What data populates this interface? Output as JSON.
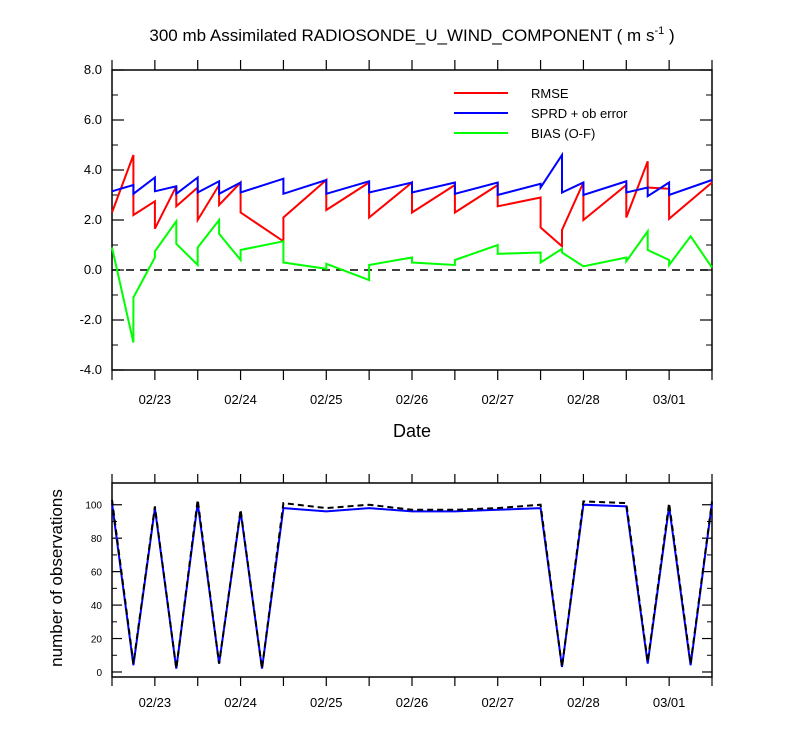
{
  "colors": {
    "rmse": "#ff0000",
    "sprd": "#0000ff",
    "bias": "#00ff00",
    "axis": "#000000",
    "zero_line": "#000000",
    "obs_assim": "#0000ff",
    "obs_total": "#000000"
  },
  "chart_data": [
    {
      "type": "line",
      "title": "300 mb Assimilated RADIOSONDE_U_WIND_COMPONENT ( m s",
      "title_superscript": "-1",
      "title_suffix": " )",
      "xlabel": "Date",
      "ylabel": "",
      "x_tick_labels": [
        "02/23",
        "02/24",
        "02/25",
        "02/26",
        "02/27",
        "02/28",
        "03/01"
      ],
      "y_tick_labels": [
        "8.0",
        "6.0",
        "4.0",
        "2.0",
        "0.0",
        "-2.0",
        "-4.0"
      ],
      "ylim": [
        -4,
        8
      ],
      "y_ticks": [
        8,
        6,
        4,
        2,
        0,
        -2,
        -4
      ],
      "x_unit": "days since 02/22 00Z (fractional)",
      "xlim": [
        0.5,
        7.5
      ],
      "x_ticks": [
        1,
        2,
        3,
        4,
        5,
        6,
        7
      ],
      "zero_reference_line": "dashed",
      "legend_position": "top-right",
      "series": [
        {
          "name": "RMSE",
          "color_key": "rmse",
          "x": [
            0.5,
            0.75,
            0.75,
            1.0,
            1.0,
            1.25,
            1.25,
            1.5,
            1.5,
            1.75,
            1.75,
            2.0,
            2.0,
            2.5,
            2.5,
            3.0,
            3.0,
            3.5,
            3.5,
            4.0,
            4.0,
            4.5,
            4.5,
            5.0,
            5.0,
            5.5,
            5.5,
            5.75,
            5.75,
            6.0,
            6.0,
            6.5,
            6.5,
            6.75,
            6.75,
            7.0,
            7.0,
            7.5
          ],
          "y": [
            2.3,
            4.6,
            2.2,
            2.75,
            1.65,
            3.35,
            2.55,
            3.3,
            2.0,
            3.4,
            2.6,
            3.5,
            2.3,
            1.15,
            2.1,
            3.6,
            2.4,
            3.5,
            2.1,
            3.5,
            2.3,
            3.4,
            2.3,
            3.4,
            2.55,
            2.9,
            1.7,
            0.95,
            1.6,
            3.5,
            2.0,
            3.4,
            2.1,
            4.35,
            3.3,
            3.25,
            2.05,
            3.5
          ]
        },
        {
          "name": "SPRD + ob error",
          "color_key": "sprd",
          "x": [
            0.5,
            0.75,
            0.75,
            1.0,
            1.0,
            1.25,
            1.25,
            1.5,
            1.5,
            1.75,
            1.75,
            2.0,
            2.0,
            2.5,
            2.5,
            3.0,
            3.0,
            3.5,
            3.5,
            4.0,
            4.0,
            4.5,
            4.5,
            5.0,
            5.0,
            5.5,
            5.5,
            5.75,
            5.75,
            6.0,
            6.0,
            6.5,
            6.5,
            6.75,
            6.75,
            7.0,
            7.0,
            7.5
          ],
          "y": [
            3.15,
            3.4,
            3.05,
            3.7,
            3.15,
            3.35,
            3.05,
            3.7,
            3.1,
            3.55,
            3.05,
            3.5,
            3.1,
            3.65,
            3.05,
            3.6,
            3.05,
            3.55,
            3.1,
            3.5,
            3.1,
            3.5,
            3.05,
            3.5,
            3.0,
            3.45,
            3.3,
            4.6,
            3.1,
            3.5,
            3.0,
            3.55,
            3.1,
            3.3,
            2.95,
            3.5,
            3.0,
            3.6
          ]
        },
        {
          "name": "BIAS (O-F)",
          "color_key": "bias",
          "x": [
            0.5,
            0.75,
            0.75,
            1.0,
            1.0,
            1.25,
            1.25,
            1.5,
            1.5,
            1.75,
            1.75,
            2.0,
            2.0,
            2.5,
            2.5,
            3.0,
            3.0,
            3.5,
            3.5,
            4.0,
            4.0,
            4.5,
            4.5,
            5.0,
            5.0,
            5.5,
            5.5,
            5.75,
            5.75,
            6.0,
            6.0,
            6.5,
            6.5,
            6.75,
            6.75,
            7.0,
            7.0,
            7.25,
            7.5
          ],
          "y": [
            0.9,
            -2.9,
            -1.1,
            0.5,
            0.75,
            1.95,
            1.05,
            0.2,
            0.9,
            2.0,
            1.45,
            0.4,
            0.8,
            1.15,
            0.3,
            0.05,
            0.25,
            -0.4,
            0.2,
            0.5,
            0.3,
            0.2,
            0.4,
            1.0,
            0.65,
            0.7,
            0.3,
            0.85,
            0.7,
            0.15,
            0.15,
            0.5,
            0.35,
            1.55,
            0.8,
            0.4,
            0.2,
            1.35,
            0.1
          ]
        }
      ]
    },
    {
      "type": "line",
      "title": "",
      "xlabel": "",
      "ylabel": "number of observations",
      "x_tick_labels": [
        "02/23",
        "02/24",
        "02/25",
        "02/26",
        "02/27",
        "02/28",
        "03/01"
      ],
      "y_tick_labels": [
        "100",
        "80",
        "60",
        "40",
        "20",
        "0"
      ],
      "ylim": [
        -3,
        113
      ],
      "y_ticks": [
        100,
        80,
        60,
        40,
        20,
        0
      ],
      "xlim": [
        0.5,
        7.5
      ],
      "x_ticks": [
        1,
        2,
        3,
        4,
        5,
        6,
        7
      ],
      "series": [
        {
          "color_key": "obs_assim",
          "style": "solid",
          "x": [
            0.5,
            0.75,
            1.0,
            1.25,
            1.5,
            1.75,
            2.0,
            2.25,
            2.5,
            3.0,
            3.5,
            4.0,
            4.5,
            5.0,
            5.5,
            5.75,
            6.0,
            6.5,
            6.75,
            7.0,
            7.25,
            7.5
          ],
          "y": [
            101,
            4,
            98,
            2,
            101,
            5,
            96,
            2,
            98,
            96,
            98,
            96,
            96,
            97,
            98,
            3,
            100,
            99,
            5,
            99,
            4,
            101
          ]
        },
        {
          "color_key": "obs_total",
          "style": "dashed",
          "x": [
            0.5,
            0.75,
            1.0,
            1.25,
            1.5,
            1.75,
            2.0,
            2.25,
            2.5,
            3.0,
            3.5,
            4.0,
            4.5,
            5.0,
            5.5,
            5.75,
            6.0,
            6.5,
            6.75,
            7.0,
            7.25,
            7.5
          ],
          "y": [
            103,
            5,
            99,
            2,
            103,
            5,
            97,
            2,
            101,
            98,
            100,
            97,
            97,
            98,
            100,
            3,
            102,
            101,
            6,
            101,
            5,
            102
          ]
        }
      ]
    }
  ]
}
